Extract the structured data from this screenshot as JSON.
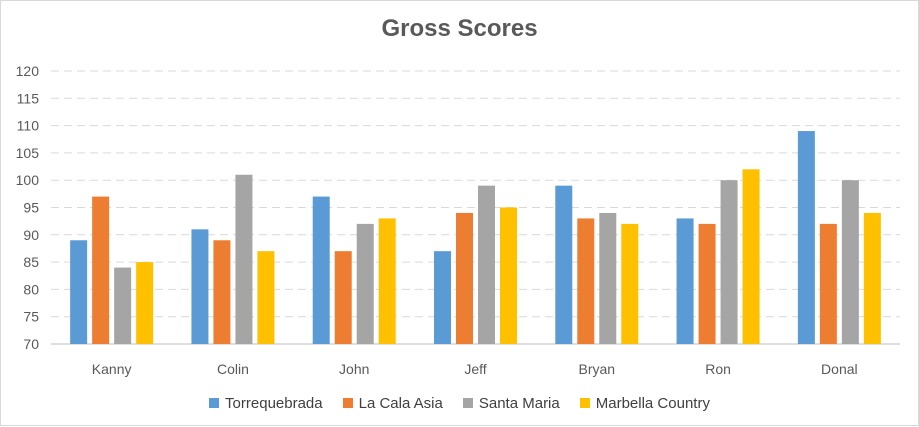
{
  "chart_data": {
    "type": "bar",
    "title": "Gross Scores",
    "xlabel": "",
    "ylabel": "",
    "ylim": [
      70,
      120
    ],
    "yticks": [
      70,
      75,
      80,
      85,
      90,
      95,
      100,
      105,
      110,
      115,
      120
    ],
    "grid": true,
    "legend_position": "bottom",
    "categories": [
      "Kanny",
      "Colin",
      "John",
      "Jeff",
      "Bryan",
      "Ron",
      "Donal"
    ],
    "series": [
      {
        "name": "Torrequebrada",
        "color": "#5B9BD5",
        "values": [
          89,
          91,
          97,
          87,
          99,
          93,
          109
        ]
      },
      {
        "name": "La Cala Asia",
        "color": "#ED7D31",
        "values": [
          97,
          89,
          87,
          94,
          93,
          92,
          92
        ]
      },
      {
        "name": "Santa Maria",
        "color": "#A5A5A5",
        "values": [
          84,
          101,
          92,
          99,
          94,
          100,
          100
        ]
      },
      {
        "name": "Marbella Country",
        "color": "#FFC000",
        "values": [
          85,
          87,
          93,
          95,
          92,
          102,
          94
        ]
      }
    ]
  }
}
